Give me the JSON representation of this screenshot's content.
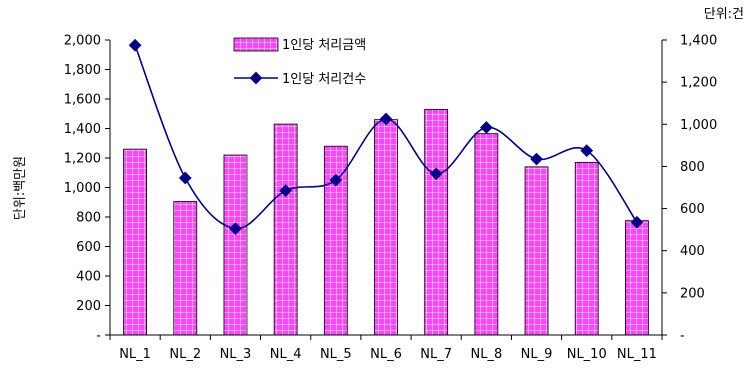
{
  "chart_data": {
    "type": "bar+line",
    "categories": [
      "NL_1",
      "NL_2",
      "NL_3",
      "NL_4",
      "NL_5",
      "NL_6",
      "NL_7",
      "NL_8",
      "NL_9",
      "NL_10",
      "NL_11"
    ],
    "series": [
      {
        "name": "1인당 처리금액",
        "type": "bar",
        "axis": "left",
        "color": "#ff33ff",
        "values": [
          1260,
          905,
          1220,
          1430,
          1280,
          1460,
          1530,
          1365,
          1140,
          1170,
          775
        ]
      },
      {
        "name": "1인당 처리건수",
        "type": "line",
        "axis": "right",
        "color": "#00008b",
        "values": [
          1375,
          745,
          505,
          685,
          735,
          1025,
          765,
          985,
          835,
          875,
          535
        ]
      }
    ],
    "y_left": {
      "label": "단위:백만원",
      "min": 0,
      "max": 2000,
      "ticks": [
        "-",
        "200",
        "400",
        "600",
        "800",
        "1,000",
        "1,200",
        "1,400",
        "1,600",
        "1,800",
        "2,000"
      ]
    },
    "y_right": {
      "label": "단위:건",
      "min": 0,
      "max": 1400,
      "ticks": [
        "-",
        "200",
        "400",
        "600",
        "800",
        "1,000",
        "1,200",
        "1,400"
      ]
    },
    "legend_position": "top-center",
    "grid": false
  }
}
